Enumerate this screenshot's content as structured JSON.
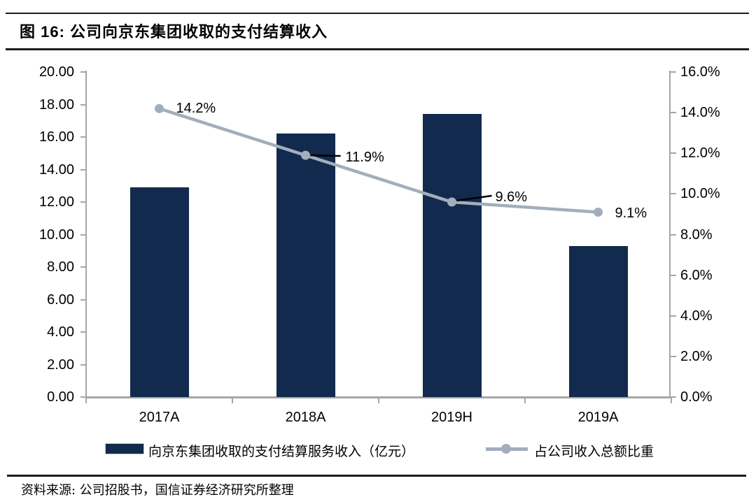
{
  "figure": {
    "title": "图 16: 公司向京东集团收取的支付结算收入",
    "source": "资料来源: 公司招股书，国信证券经济研究所整理"
  },
  "chart_data": {
    "type": "bar",
    "subtype": "bar-line-combo",
    "categories": [
      "2017A",
      "2018A",
      "2019H",
      "2019A"
    ],
    "series": [
      {
        "name": "向京东集团收取的支付结算服务收入（亿元）",
        "type": "bar",
        "axis": "left",
        "values": [
          12.9,
          16.2,
          17.4,
          9.3
        ],
        "color": "#122A4D"
      },
      {
        "name": "占公司收入总额比重",
        "type": "line",
        "axis": "right",
        "unit": "%",
        "values": [
          14.2,
          11.9,
          9.6,
          9.1
        ],
        "point_labels": [
          "14.2%",
          "11.9%",
          "9.6%",
          "9.1%"
        ],
        "color": "#A3AEBC"
      }
    ],
    "left_axis": {
      "min": 0,
      "max": 20,
      "step": 2,
      "tick_labels": [
        "20.00",
        "18.00",
        "16.00",
        "14.00",
        "12.00",
        "10.00",
        "8.00",
        "6.00",
        "4.00",
        "2.00",
        "0.00"
      ]
    },
    "right_axis": {
      "min": 0,
      "max": 16,
      "step": 2,
      "tick_labels": [
        "16.0%",
        "14.0%",
        "12.0%",
        "10.0%",
        "8.0%",
        "6.0%",
        "4.0%",
        "2.0%",
        "0.0%"
      ]
    },
    "grid": false,
    "legend_position": "bottom",
    "colors": {
      "bar": "#122A4D",
      "line": "#A3AEBC",
      "axis": "#A6A6A6",
      "leader_line": "#000000",
      "text": "#000000"
    }
  }
}
